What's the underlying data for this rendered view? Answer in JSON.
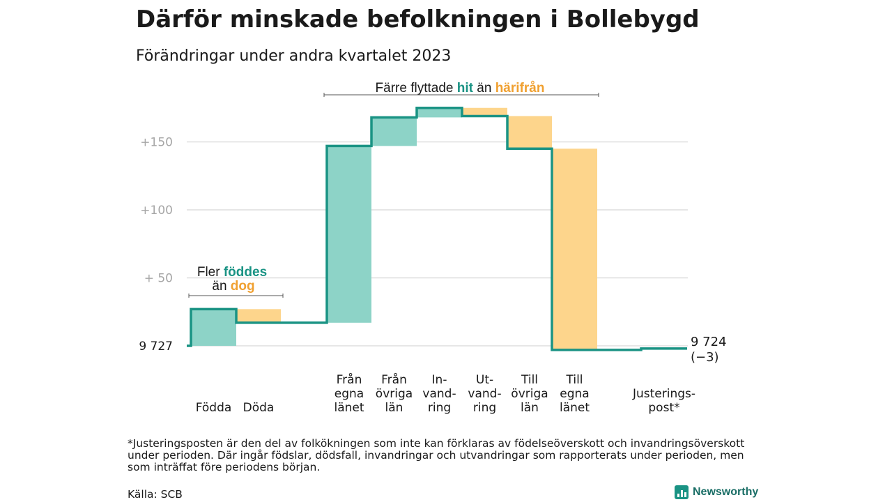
{
  "title": "Därför minskade befolkningen i Bollebygd",
  "subtitle": "Förändringar under andra kvartalet 2023",
  "chart_data": {
    "type": "waterfall",
    "baseline": 9727,
    "ylim": [
      9727,
      9905
    ],
    "yticks": [
      {
        "value": 9727,
        "label": "9  727"
      },
      {
        "value": 9777,
        "label": "+  50"
      },
      {
        "value": 9827,
        "label": "+100"
      },
      {
        "value": 9877,
        "label": "+150"
      }
    ],
    "steps": [
      {
        "label": [
          "Födda"
        ],
        "value": 27,
        "kind": "in"
      },
      {
        "label": [
          "Döda"
        ],
        "value": -10,
        "kind": "out"
      },
      {
        "label": [
          "Från",
          "egna",
          "länet"
        ],
        "value": 130,
        "kind": "in"
      },
      {
        "label": [
          "Från",
          "övriga",
          "län"
        ],
        "value": 21,
        "kind": "in"
      },
      {
        "label": [
          "In-",
          "vand-",
          "ring"
        ],
        "value": 7,
        "kind": "in"
      },
      {
        "label": [
          "Ut-",
          "vand-",
          "ring"
        ],
        "value": -6,
        "kind": "out"
      },
      {
        "label": [
          "Till",
          "övriga",
          "län"
        ],
        "value": -24,
        "kind": "out"
      },
      {
        "label": [
          "Till",
          "egna",
          "länet"
        ],
        "value": -148,
        "kind": "out"
      },
      {
        "label": [
          "Justerings-",
          "post*"
        ],
        "value": 1,
        "kind": "adjust"
      }
    ],
    "end": {
      "value": 9724,
      "label": "9 724",
      "change": "(−3)"
    },
    "annotations": [
      {
        "parts": [
          {
            "text": "Fler ",
            "style": "plain"
          },
          {
            "text": "föddes",
            "style": "in"
          }
        ],
        "parts2": [
          {
            "text": "än ",
            "style": "plain"
          },
          {
            "text": "dog",
            "style": "out"
          }
        ]
      },
      {
        "parts": [
          {
            "text": "Färre flyttade ",
            "style": "plain"
          },
          {
            "text": "hit",
            "style": "in"
          },
          {
            "text": " än ",
            "style": "plain"
          },
          {
            "text": "härifrån",
            "style": "out"
          }
        ]
      }
    ],
    "colors": {
      "in_fill": "#8dd3c7",
      "out_fill": "#fdd58c",
      "line": "#1a9384",
      "grid": "#dedede",
      "in_text": "#1a9384",
      "out_text": "#f0a030"
    }
  },
  "footnote": "*Justeringsposten är den del av folkökningen som inte kan förklaras av födelseöverskott och invandringsöverskott under perioden. Där ingår födslar, dödsfall, invandringar och utvandringar som rapporterats under perioden, men som inträffat före periodens början.",
  "source": "Källa: SCB",
  "brand": "Newsworthy"
}
